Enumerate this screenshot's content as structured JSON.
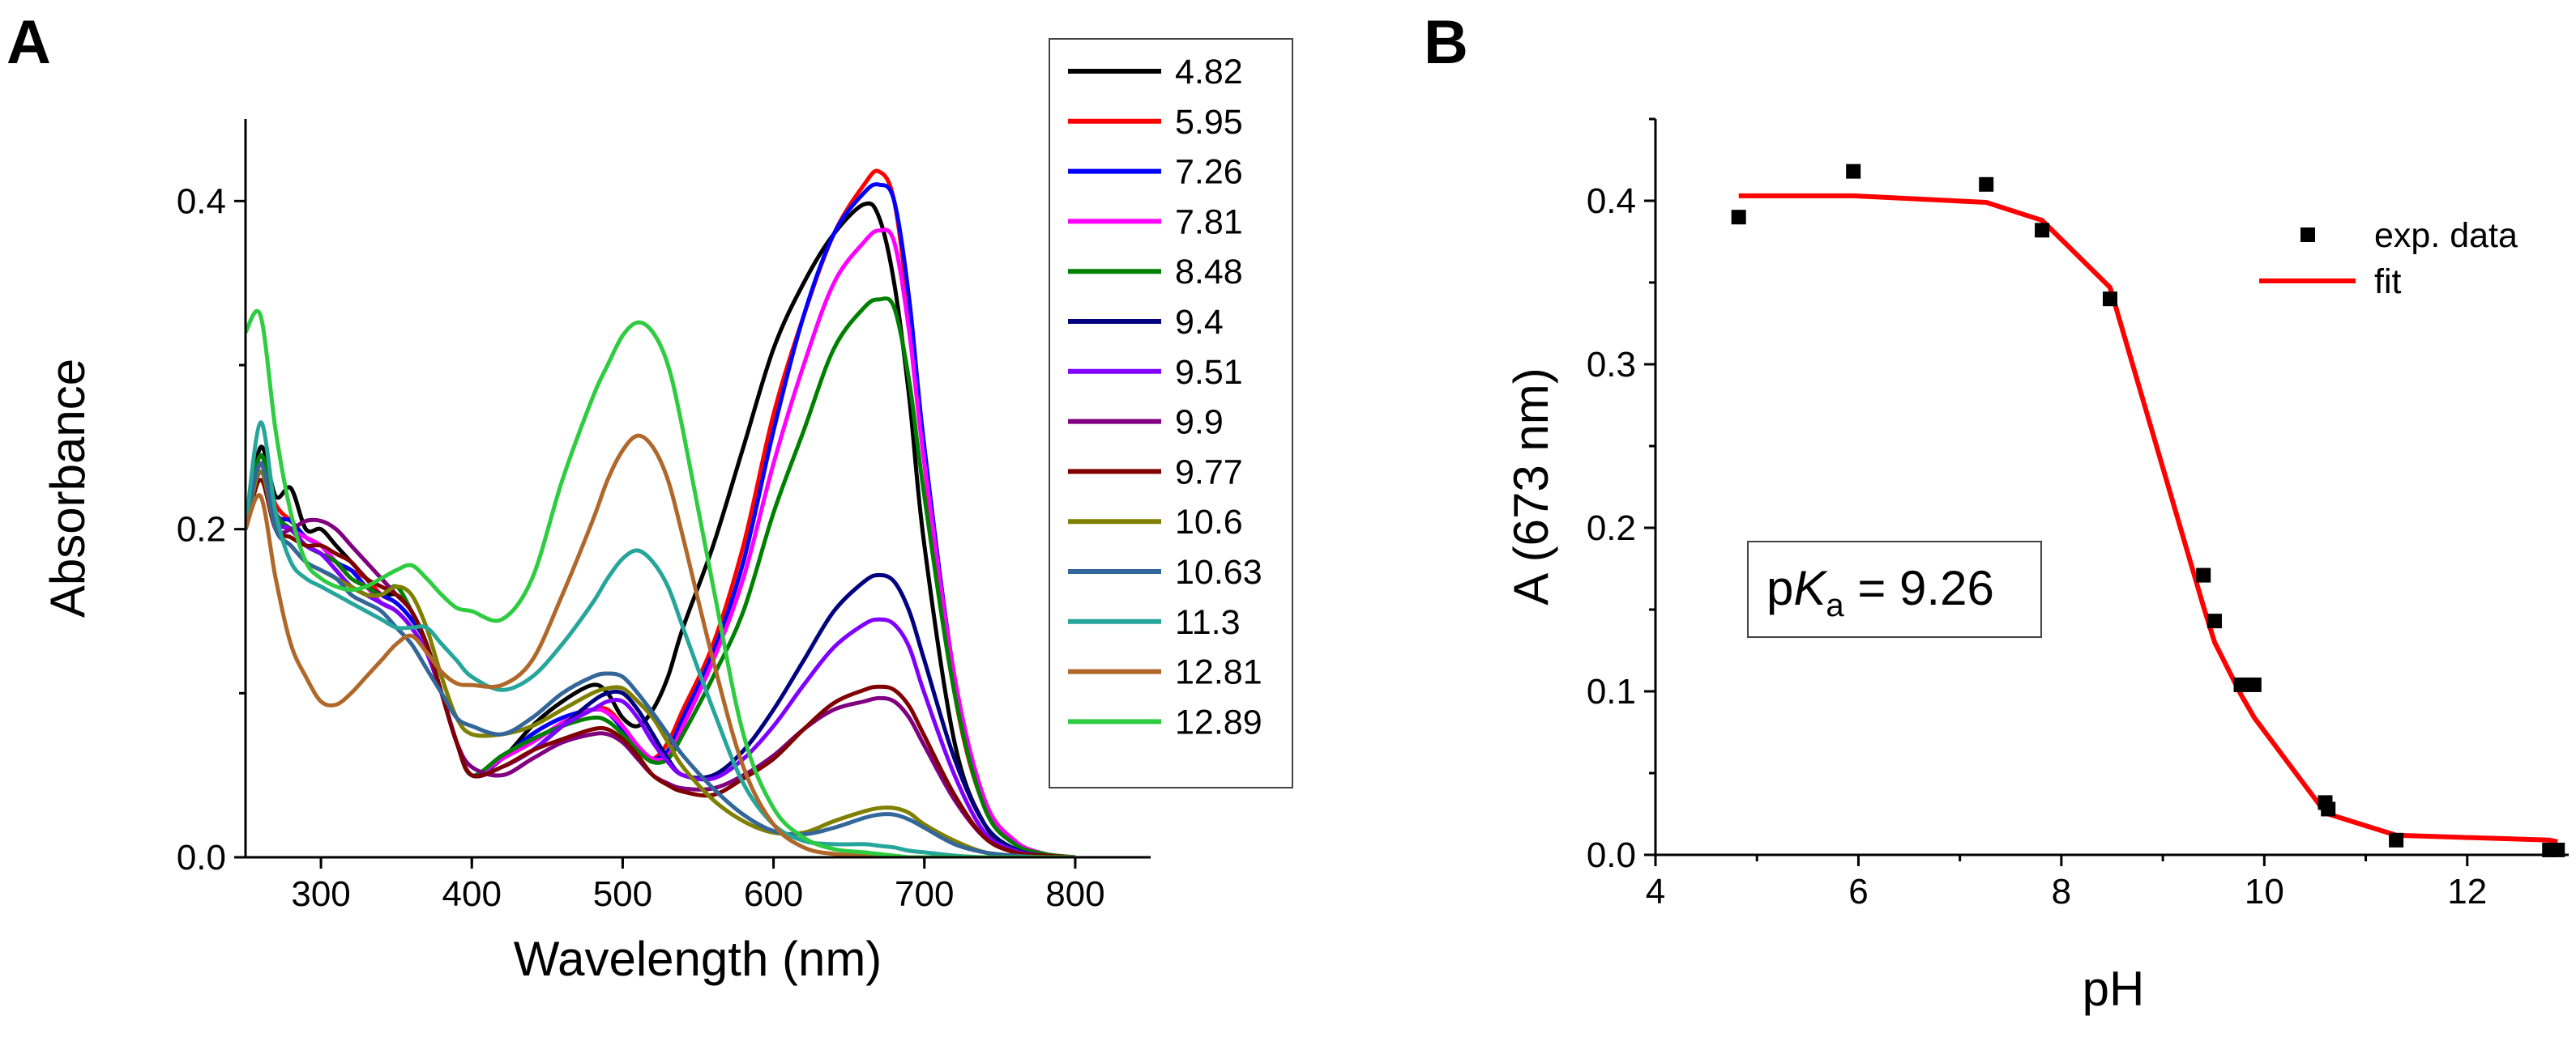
{
  "figure": {
    "panel_a_letter": "A",
    "panel_b_letter": "B",
    "pka_prefix": "p",
    "pka_symbol": "K",
    "pka_subscript": "a",
    "pka_value": " = 9.26"
  },
  "chart_data": [
    {
      "type": "line",
      "panel": "A",
      "title": "",
      "xlabel": "Wavelength (nm)",
      "ylabel": "Absorbance",
      "xlim": [
        250,
        850
      ],
      "ylim": [
        0,
        0.45
      ],
      "x_ticks": [
        300,
        400,
        500,
        600,
        700,
        800
      ],
      "x_tick_labels": [
        "300",
        "400",
        "500",
        "600",
        "700",
        "800"
      ],
      "y_ticks": [
        0,
        0.2,
        0.4
      ],
      "y_tick_labels": [
        "0.0",
        "0.2",
        "0.4"
      ],
      "legend_position": "top-right",
      "x": [
        250,
        260,
        270,
        280,
        290,
        300,
        310,
        320,
        330,
        340,
        350,
        360,
        370,
        380,
        390,
        400,
        420,
        440,
        460,
        480,
        490,
        500,
        510,
        520,
        530,
        540,
        560,
        580,
        600,
        620,
        640,
        660,
        670,
        680,
        690,
        700,
        720,
        740,
        760,
        780,
        800
      ],
      "series": [
        {
          "name": "4.82",
          "color": "#000000",
          "values": [
            0.2,
            0.25,
            0.22,
            0.225,
            0.2,
            0.2,
            0.19,
            0.18,
            0.17,
            0.16,
            0.16,
            0.15,
            0.13,
            0.1,
            0.07,
            0.05,
            0.06,
            0.08,
            0.095,
            0.105,
            0.1,
            0.085,
            0.08,
            0.09,
            0.11,
            0.14,
            0.19,
            0.25,
            0.31,
            0.35,
            0.38,
            0.398,
            0.39,
            0.35,
            0.28,
            0.19,
            0.07,
            0.02,
            0.005,
            0.001,
            0
          ]
        },
        {
          "name": "5.95",
          "color": "#ff0000",
          "values": [
            0.2,
            0.24,
            0.215,
            0.205,
            0.195,
            0.19,
            0.18,
            0.175,
            0.17,
            0.16,
            0.155,
            0.145,
            0.13,
            0.1,
            0.07,
            0.05,
            0.06,
            0.075,
            0.085,
            0.09,
            0.09,
            0.08,
            0.065,
            0.06,
            0.07,
            0.09,
            0.13,
            0.19,
            0.27,
            0.33,
            0.38,
            0.41,
            0.418,
            0.4,
            0.33,
            0.24,
            0.1,
            0.03,
            0.008,
            0.002,
            0
          ]
        },
        {
          "name": "7.26",
          "color": "#0000ff",
          "values": [
            0.2,
            0.245,
            0.21,
            0.205,
            0.195,
            0.19,
            0.18,
            0.175,
            0.165,
            0.16,
            0.155,
            0.145,
            0.13,
            0.1,
            0.07,
            0.05,
            0.06,
            0.075,
            0.085,
            0.09,
            0.088,
            0.078,
            0.065,
            0.06,
            0.065,
            0.085,
            0.125,
            0.18,
            0.26,
            0.33,
            0.38,
            0.405,
            0.41,
            0.4,
            0.34,
            0.25,
            0.11,
            0.035,
            0.01,
            0.002,
            0
          ]
        },
        {
          "name": "7.81",
          "color": "#ff00ff",
          "values": [
            0.2,
            0.24,
            0.21,
            0.2,
            0.195,
            0.19,
            0.18,
            0.17,
            0.165,
            0.155,
            0.15,
            0.14,
            0.125,
            0.1,
            0.07,
            0.05,
            0.06,
            0.07,
            0.082,
            0.09,
            0.088,
            0.08,
            0.068,
            0.06,
            0.062,
            0.08,
            0.12,
            0.17,
            0.24,
            0.3,
            0.35,
            0.375,
            0.382,
            0.375,
            0.32,
            0.24,
            0.11,
            0.035,
            0.01,
            0.002,
            0
          ]
        },
        {
          "name": "8.48",
          "color": "#008000",
          "values": [
            0.2,
            0.245,
            0.21,
            0.2,
            0.19,
            0.185,
            0.18,
            0.17,
            0.165,
            0.16,
            0.165,
            0.15,
            0.13,
            0.1,
            0.07,
            0.05,
            0.062,
            0.072,
            0.08,
            0.085,
            0.083,
            0.075,
            0.065,
            0.058,
            0.06,
            0.075,
            0.11,
            0.15,
            0.21,
            0.26,
            0.31,
            0.335,
            0.34,
            0.335,
            0.29,
            0.22,
            0.1,
            0.03,
            0.008,
            0.002,
            0
          ]
        },
        {
          "name": "9.4",
          "color": "#000080",
          "values": [
            0.2,
            0.235,
            0.205,
            0.2,
            0.19,
            0.185,
            0.175,
            0.165,
            0.16,
            0.155,
            0.15,
            0.14,
            0.125,
            0.1,
            0.07,
            0.05,
            0.055,
            0.065,
            0.08,
            0.095,
            0.1,
            0.1,
            0.09,
            0.075,
            0.06,
            0.05,
            0.05,
            0.065,
            0.09,
            0.12,
            0.15,
            0.168,
            0.172,
            0.168,
            0.15,
            0.12,
            0.06,
            0.02,
            0.005,
            0.001,
            0
          ]
        },
        {
          "name": "9.51",
          "color": "#8000ff",
          "values": [
            0.2,
            0.235,
            0.205,
            0.2,
            0.19,
            0.185,
            0.175,
            0.165,
            0.16,
            0.155,
            0.15,
            0.14,
            0.125,
            0.1,
            0.07,
            0.05,
            0.055,
            0.065,
            0.08,
            0.09,
            0.095,
            0.095,
            0.085,
            0.07,
            0.058,
            0.05,
            0.048,
            0.06,
            0.08,
            0.105,
            0.128,
            0.142,
            0.145,
            0.142,
            0.128,
            0.1,
            0.05,
            0.015,
            0.004,
            0.001,
            0
          ]
        },
        {
          "name": "9.9",
          "color": "#800080",
          "values": [
            0.2,
            0.23,
            0.2,
            0.2,
            0.205,
            0.205,
            0.2,
            0.19,
            0.18,
            0.17,
            0.16,
            0.15,
            0.13,
            0.1,
            0.07,
            0.055,
            0.05,
            0.06,
            0.07,
            0.075,
            0.075,
            0.07,
            0.06,
            0.05,
            0.045,
            0.042,
            0.042,
            0.05,
            0.062,
            0.078,
            0.09,
            0.095,
            0.097,
            0.095,
            0.085,
            0.068,
            0.035,
            0.012,
            0.003,
            0.001,
            0
          ]
        },
        {
          "name": "9.77",
          "color": "#800000",
          "values": [
            0.2,
            0.23,
            0.2,
            0.195,
            0.19,
            0.19,
            0.185,
            0.18,
            0.17,
            0.165,
            0.16,
            0.15,
            0.13,
            0.1,
            0.07,
            0.05,
            0.055,
            0.065,
            0.072,
            0.078,
            0.078,
            0.072,
            0.062,
            0.05,
            0.044,
            0.04,
            0.038,
            0.048,
            0.06,
            0.078,
            0.094,
            0.102,
            0.104,
            0.102,
            0.092,
            0.074,
            0.038,
            0.012,
            0.003,
            0.001,
            0
          ]
        },
        {
          "name": "10.6",
          "color": "#808000",
          "values": [
            0.2,
            0.235,
            0.2,
            0.19,
            0.18,
            0.175,
            0.17,
            0.165,
            0.16,
            0.16,
            0.165,
            0.16,
            0.14,
            0.11,
            0.085,
            0.075,
            0.075,
            0.08,
            0.09,
            0.1,
            0.103,
            0.103,
            0.095,
            0.085,
            0.07,
            0.055,
            0.035,
            0.022,
            0.015,
            0.015,
            0.022,
            0.028,
            0.03,
            0.03,
            0.027,
            0.02,
            0.01,
            0.003,
            0.001,
            0,
            0
          ]
        },
        {
          "name": "10.63",
          "color": "#336699",
          "values": [
            0.2,
            0.24,
            0.2,
            0.19,
            0.18,
            0.175,
            0.17,
            0.16,
            0.155,
            0.15,
            0.14,
            0.13,
            0.115,
            0.1,
            0.085,
            0.08,
            0.075,
            0.085,
            0.1,
            0.11,
            0.112,
            0.11,
            0.1,
            0.088,
            0.075,
            0.062,
            0.042,
            0.026,
            0.016,
            0.014,
            0.018,
            0.024,
            0.026,
            0.026,
            0.023,
            0.018,
            0.008,
            0.003,
            0.001,
            0,
            0
          ]
        },
        {
          "name": "11.3",
          "color": "#26a69a",
          "values": [
            0.2,
            0.265,
            0.21,
            0.18,
            0.17,
            0.165,
            0.16,
            0.155,
            0.15,
            0.145,
            0.14,
            0.14,
            0.14,
            0.13,
            0.12,
            0.11,
            0.102,
            0.11,
            0.13,
            0.155,
            0.17,
            0.182,
            0.187,
            0.18,
            0.165,
            0.14,
            0.09,
            0.045,
            0.02,
            0.01,
            0.008,
            0.008,
            0.007,
            0.006,
            0.004,
            0.003,
            0.001,
            0,
            0,
            0,
            0
          ]
        },
        {
          "name": "12.81",
          "color": "#b0682a",
          "values": [
            0.2,
            0.22,
            0.17,
            0.13,
            0.11,
            0.095,
            0.093,
            0.1,
            0.11,
            0.12,
            0.13,
            0.135,
            0.125,
            0.113,
            0.106,
            0.105,
            0.105,
            0.12,
            0.16,
            0.205,
            0.23,
            0.248,
            0.257,
            0.25,
            0.23,
            0.195,
            0.12,
            0.055,
            0.02,
            0.006,
            0.002,
            0.001,
            0,
            0,
            0,
            0,
            0,
            0,
            0,
            0,
            0
          ]
        },
        {
          "name": "12.89",
          "color": "#2ecc40",
          "values": [
            0.32,
            0.33,
            0.26,
            0.21,
            0.18,
            0.17,
            0.165,
            0.163,
            0.165,
            0.17,
            0.175,
            0.178,
            0.17,
            0.16,
            0.152,
            0.15,
            0.145,
            0.17,
            0.23,
            0.28,
            0.3,
            0.318,
            0.326,
            0.32,
            0.3,
            0.26,
            0.165,
            0.075,
            0.03,
            0.012,
            0.005,
            0.003,
            0.002,
            0.001,
            0,
            0,
            0,
            0,
            0,
            0,
            0
          ]
        }
      ]
    },
    {
      "type": "scatter",
      "panel": "B",
      "title": "",
      "xlabel": "pH",
      "ylabel_main": "A (673 nm)",
      "xlim": [
        4,
        13
      ],
      "ylim": [
        0,
        0.45
      ],
      "x_ticks": [
        4,
        6,
        8,
        10,
        12
      ],
      "x_tick_labels": [
        "4",
        "6",
        "8",
        "10",
        "12"
      ],
      "y_ticks": [
        0,
        0.1,
        0.2,
        0.3,
        0.4
      ],
      "y_tick_labels": [
        "0.0",
        "0.1",
        "0.2",
        "0.3",
        "0.4"
      ],
      "legend_position": "top-right",
      "legend": [
        {
          "label": "exp. data",
          "kind": "marker",
          "color": "#000000"
        },
        {
          "label": "fit",
          "kind": "line",
          "color": "#ff0000"
        }
      ],
      "series": [
        {
          "name": "exp. data",
          "kind": "scatter",
          "color": "#000000",
          "x": [
            4.82,
            5.95,
            7.26,
            7.81,
            8.48,
            9.4,
            9.51,
            9.77,
            9.9,
            10.6,
            10.63,
            11.3,
            12.81,
            12.89
          ],
          "y": [
            0.39,
            0.418,
            0.41,
            0.382,
            0.34,
            0.171,
            0.143,
            0.104,
            0.104,
            0.032,
            0.028,
            0.009,
            0.003,
            0.003
          ]
        },
        {
          "name": "fit",
          "kind": "line",
          "color": "#ff0000",
          "x": [
            4.82,
            5.95,
            7.26,
            7.81,
            8.48,
            9.4,
            9.51,
            9.77,
            9.9,
            10.6,
            10.63,
            11.3,
            12.81,
            12.89
          ],
          "y": [
            0.403,
            0.403,
            0.399,
            0.388,
            0.347,
            0.152,
            0.13,
            0.098,
            0.084,
            0.026,
            0.025,
            0.012,
            0.009,
            0.008
          ]
        }
      ]
    }
  ]
}
